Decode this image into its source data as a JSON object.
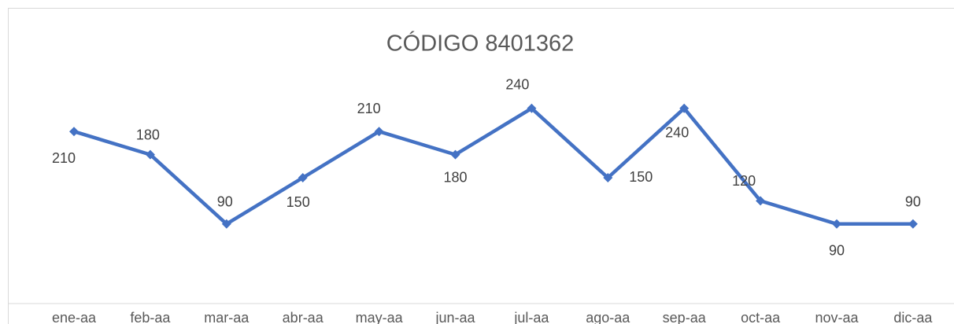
{
  "chart_data": {
    "type": "line",
    "title": "CÓDIGO 8401362",
    "categories": [
      "ene-aa",
      "feb-aa",
      "mar-aa",
      "abr-aa",
      "may-aa",
      "jun-aa",
      "jul-aa",
      "ago-aa",
      "sep-aa",
      "oct-aa",
      "nov-aa",
      "dic-aa"
    ],
    "series": [
      {
        "name": "CÓDIGO 8401362",
        "color": "#4472c4",
        "values": [
          210,
          180,
          90,
          150,
          210,
          180,
          240,
          150,
          240,
          120,
          90,
          90
        ]
      }
    ],
    "ylim": [
      0,
      300
    ],
    "grid": false
  }
}
